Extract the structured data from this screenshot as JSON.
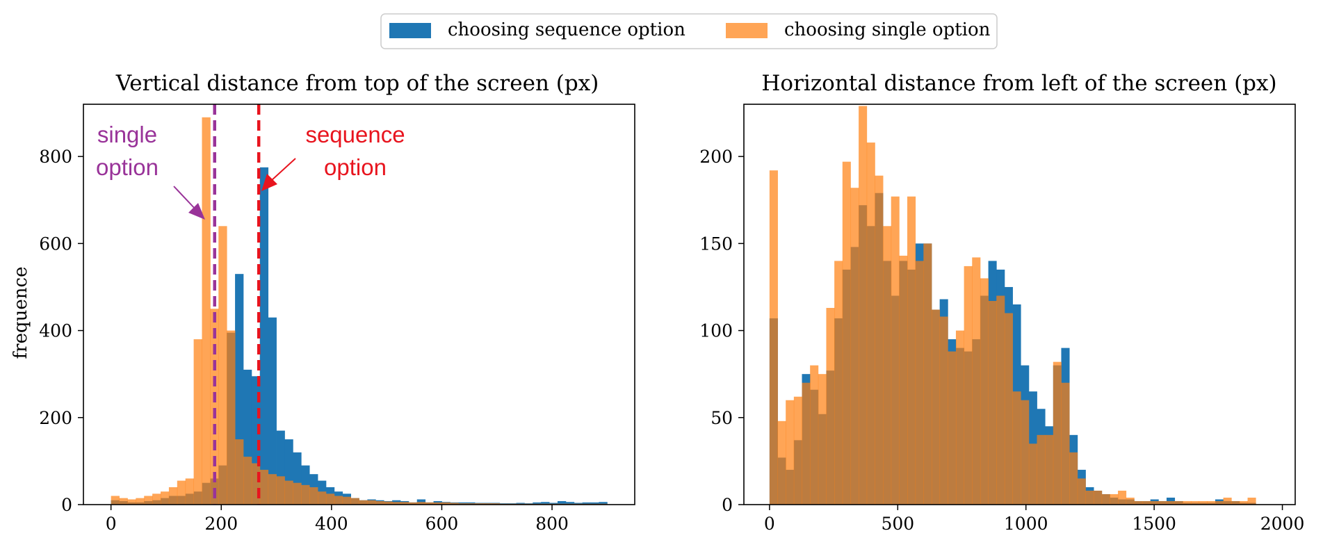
{
  "legend": {
    "placement": "top-center",
    "items": [
      {
        "label": "choosing sequence option",
        "color": "#1f77b4"
      },
      {
        "label": "choosing single option",
        "color": "#ff7f0e"
      }
    ]
  },
  "chart_data": [
    {
      "type": "bar",
      "subtype": "overlapping-histogram",
      "title": "Vertical distance from top of the screen (px)",
      "xlabel": "",
      "ylabel": "frequence",
      "xlim": [
        -50,
        950
      ],
      "ylim": [
        0,
        920
      ],
      "xticks": [
        "0",
        "200",
        "400",
        "600",
        "800"
      ],
      "xtick_values": [
        0,
        200,
        400,
        600,
        800
      ],
      "yticks": [
        "0",
        "200",
        "400",
        "600",
        "800"
      ],
      "ytick_values": [
        0,
        200,
        400,
        600,
        800
      ],
      "bin_width": 15,
      "grid": false,
      "series": [
        {
          "name": "choosing sequence option",
          "color": "#1f77b4",
          "opacity": 1.0,
          "bins_start": [
            0,
            15,
            30,
            45,
            60,
            75,
            90,
            105,
            120,
            135,
            150,
            165,
            180,
            195,
            210,
            225,
            240,
            255,
            270,
            285,
            300,
            315,
            330,
            345,
            360,
            375,
            390,
            405,
            420,
            435,
            450,
            465,
            480,
            495,
            510,
            525,
            540,
            555,
            570,
            585,
            600,
            615,
            630,
            645,
            660,
            675,
            690,
            705,
            720,
            735,
            750,
            765,
            780,
            795,
            810,
            825,
            840,
            855,
            870,
            885
          ],
          "values": [
            10,
            8,
            5,
            5,
            8,
            10,
            15,
            20,
            20,
            25,
            30,
            50,
            60,
            90,
            395,
            530,
            310,
            295,
            775,
            430,
            170,
            150,
            120,
            90,
            70,
            55,
            40,
            30,
            25,
            15,
            10,
            12,
            10,
            8,
            10,
            8,
            5,
            12,
            5,
            8,
            6,
            5,
            5,
            5,
            4,
            4,
            4,
            3,
            3,
            4,
            3,
            5,
            6,
            4,
            8,
            6,
            4,
            5,
            5,
            6
          ]
        },
        {
          "name": "choosing single option",
          "color": "#ff7f0e",
          "opacity": 0.7,
          "bins_start": [
            0,
            15,
            30,
            45,
            60,
            75,
            90,
            105,
            120,
            135,
            150,
            165,
            180,
            195,
            210,
            225,
            240,
            255,
            270,
            285,
            300,
            315,
            330,
            345,
            360,
            375,
            390,
            405,
            420,
            435,
            450,
            465,
            480,
            495,
            510,
            525,
            540,
            555,
            570,
            585,
            600,
            615,
            630,
            645,
            660,
            675,
            690,
            705,
            720,
            735,
            750,
            765,
            780,
            795,
            810,
            825,
            840,
            855,
            870,
            885
          ],
          "values": [
            20,
            15,
            12,
            15,
            20,
            25,
            30,
            40,
            55,
            60,
            380,
            890,
            450,
            640,
            400,
            150,
            110,
            95,
            80,
            70,
            65,
            55,
            50,
            45,
            40,
            30,
            25,
            20,
            18,
            15,
            10,
            10,
            8,
            7,
            6,
            6,
            5,
            6,
            5,
            5,
            5,
            4,
            3,
            3,
            3,
            3,
            3,
            2,
            2,
            2,
            2,
            2,
            2,
            2,
            2,
            2,
            2,
            2,
            2,
            2
          ]
        }
      ],
      "reference_lines": [
        {
          "x": 188,
          "color": "#993399",
          "style": "dashed"
        },
        {
          "x": 268,
          "color": "#e8141e",
          "style": "dashed"
        }
      ],
      "annotations": [
        {
          "text_lines": [
            "single",
            "option"
          ],
          "color": "#993399",
          "points_to_x": 188
        },
        {
          "text_lines": [
            "sequence",
            "option"
          ],
          "color": "#e8141e",
          "points_to_x": 268
        }
      ]
    },
    {
      "type": "bar",
      "subtype": "overlapping-histogram",
      "title": "Horizontal distance from left of the screen (px)",
      "xlabel": "",
      "ylabel": "",
      "xlim": [
        -100,
        2050
      ],
      "ylim": [
        0,
        230
      ],
      "xticks": [
        "0",
        "500",
        "1000",
        "1500",
        "2000"
      ],
      "xtick_values": [
        0,
        500,
        1000,
        1500,
        2000
      ],
      "yticks": [
        "0",
        "50",
        "100",
        "150",
        "200"
      ],
      "ytick_values": [
        0,
        50,
        100,
        150,
        200
      ],
      "bin_width": 31.6,
      "grid": false,
      "series": [
        {
          "name": "choosing sequence option",
          "color": "#1f77b4",
          "opacity": 1.0,
          "bins_start": [
            0,
            31.6,
            63.2,
            94.8,
            126.4,
            158,
            189.6,
            221.2,
            252.8,
            284.4,
            316,
            347.6,
            379.2,
            410.8,
            442.4,
            474,
            505.6,
            537.2,
            568.8,
            600.4,
            632,
            663.6,
            695.2,
            726.8,
            758.4,
            790,
            821.6,
            853.2,
            884.8,
            916.4,
            948,
            979.6,
            1011.2,
            1042.8,
            1074.4,
            1106,
            1137.6,
            1169.2,
            1200.8,
            1232.4,
            1264,
            1295.6,
            1327.2,
            1358.8,
            1390.4,
            1422,
            1453.6,
            1485.2,
            1516.8,
            1548.4,
            1580,
            1611.6,
            1643.2,
            1674.8,
            1706.4,
            1738,
            1769.6,
            1801.2,
            1832.8,
            1864.4
          ],
          "values": [
            107,
            27,
            20,
            37,
            75,
            66,
            52,
            77,
            107,
            135,
            148,
            172,
            160,
            179,
            140,
            120,
            140,
            135,
            150,
            150,
            112,
            118,
            95,
            90,
            88,
            95,
            120,
            140,
            135,
            125,
            115,
            80,
            65,
            55,
            45,
            80,
            90,
            40,
            20,
            10,
            8,
            6,
            4,
            3,
            3,
            2,
            2,
            3,
            2,
            4,
            2,
            1,
            1,
            1,
            1,
            3,
            2,
            2,
            1,
            1
          ]
        },
        {
          "name": "choosing single option",
          "color": "#ff7f0e",
          "opacity": 0.7,
          "bins_start": [
            0,
            31.6,
            63.2,
            94.8,
            126.4,
            158,
            189.6,
            221.2,
            252.8,
            284.4,
            316,
            347.6,
            379.2,
            410.8,
            442.4,
            474,
            505.6,
            537.2,
            568.8,
            600.4,
            632,
            663.6,
            695.2,
            726.8,
            758.4,
            790,
            821.6,
            853.2,
            884.8,
            916.4,
            948,
            979.6,
            1011.2,
            1042.8,
            1074.4,
            1106,
            1137.6,
            1169.2,
            1200.8,
            1232.4,
            1264,
            1295.6,
            1327.2,
            1358.8,
            1390.4,
            1422,
            1453.6,
            1485.2,
            1516.8,
            1548.4,
            1580,
            1611.6,
            1643.2,
            1674.8,
            1706.4,
            1738,
            1769.6,
            1801.2,
            1832.8,
            1864.4
          ],
          "values": [
            192,
            48,
            60,
            62,
            70,
            80,
            75,
            113,
            140,
            197,
            182,
            229,
            208,
            189,
            160,
            177,
            143,
            177,
            140,
            150,
            112,
            108,
            88,
            100,
            137,
            142,
            130,
            117,
            120,
            110,
            65,
            60,
            35,
            40,
            40,
            82,
            70,
            30,
            15,
            8,
            8,
            6,
            6,
            8,
            4,
            2,
            2,
            2,
            2,
            2,
            2,
            2,
            2,
            2,
            2,
            2,
            4,
            2,
            2,
            4
          ]
        }
      ]
    }
  ]
}
